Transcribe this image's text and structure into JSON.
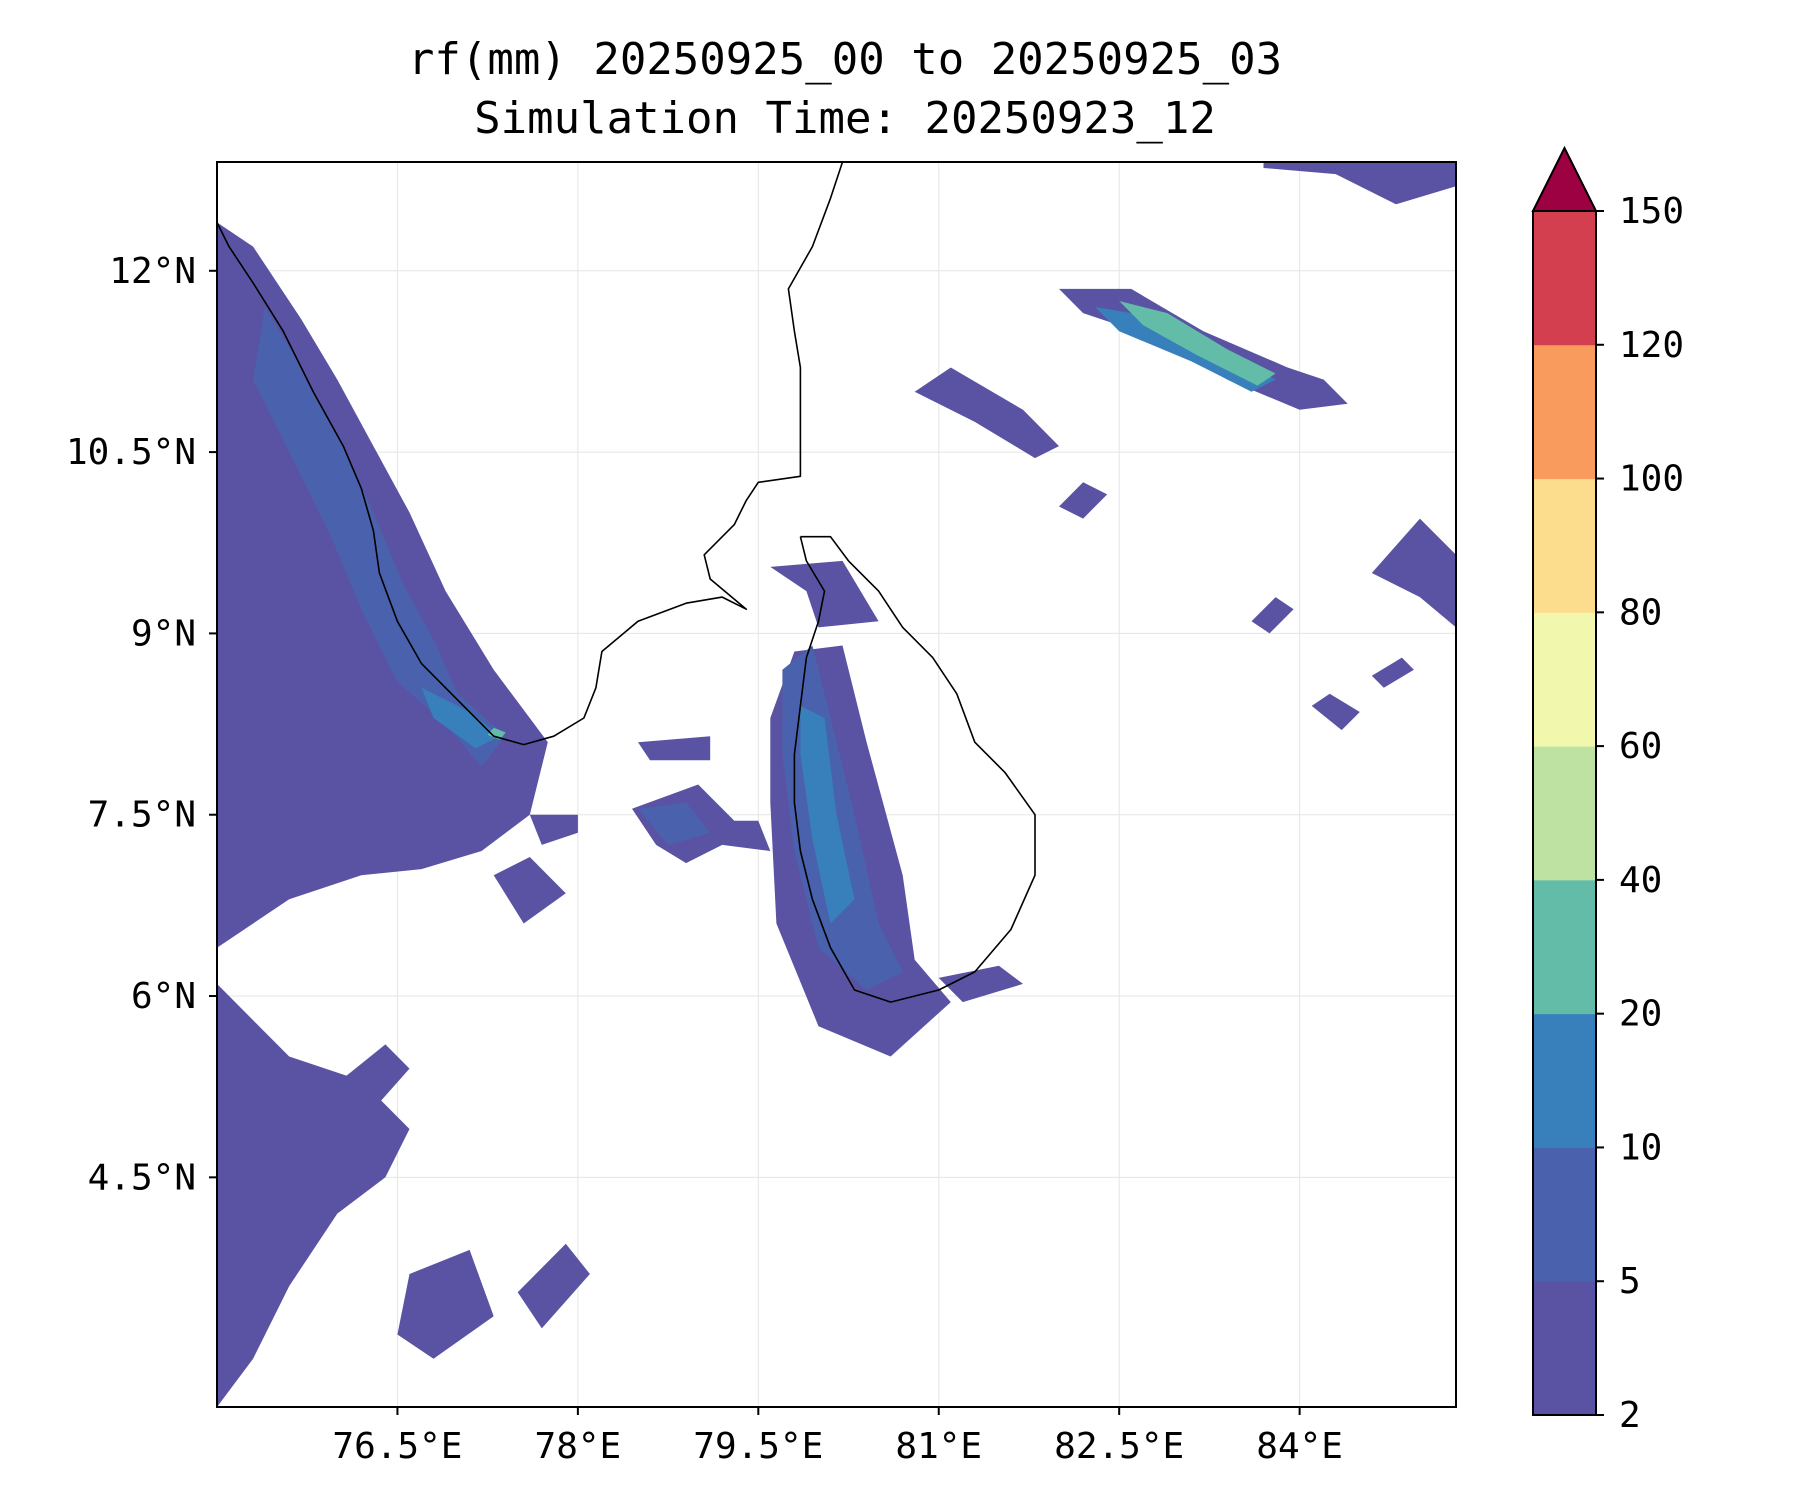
{
  "title": "rf(mm) 20250925_00 to 20250925_03",
  "subtitle": "Simulation Time: 20250923_12",
  "map": {
    "lon_range": [
      75.0,
      85.3
    ],
    "lat_range": [
      2.6,
      12.9
    ],
    "x_ticks": [
      {
        "value": 76.5,
        "label": "76.5°E"
      },
      {
        "value": 78.0,
        "label": "78°E"
      },
      {
        "value": 79.5,
        "label": "79.5°E"
      },
      {
        "value": 81.0,
        "label": "81°E"
      },
      {
        "value": 82.5,
        "label": "82.5°E"
      },
      {
        "value": 84.0,
        "label": "84°E"
      }
    ],
    "y_ticks": [
      {
        "value": 12.0,
        "label": "12°N"
      },
      {
        "value": 10.5,
        "label": "10.5°N"
      },
      {
        "value": 9.0,
        "label": "9°N"
      },
      {
        "value": 7.5,
        "label": "7.5°N"
      },
      {
        "value": 6.0,
        "label": "6°N"
      },
      {
        "value": 4.5,
        "label": "4.5°N"
      }
    ],
    "grid": true,
    "coastlines": {
      "india_west": [
        [
          75.0,
          12.4
        ],
        [
          75.1,
          12.2
        ],
        [
          75.3,
          11.9
        ],
        [
          75.55,
          11.5
        ],
        [
          75.8,
          11.0
        ],
        [
          76.05,
          10.55
        ],
        [
          76.2,
          10.2
        ],
        [
          76.3,
          9.85
        ],
        [
          76.35,
          9.5
        ],
        [
          76.5,
          9.1
        ],
        [
          76.7,
          8.75
        ],
        [
          77.0,
          8.45
        ],
        [
          77.3,
          8.15
        ],
        [
          77.55,
          8.08
        ]
      ],
      "india_east": [
        [
          77.55,
          8.08
        ],
        [
          77.8,
          8.15
        ],
        [
          78.05,
          8.3
        ],
        [
          78.15,
          8.55
        ],
        [
          78.2,
          8.85
        ],
        [
          78.5,
          9.1
        ],
        [
          78.9,
          9.25
        ],
        [
          79.2,
          9.3
        ],
        [
          79.4,
          9.2
        ],
        [
          79.1,
          9.45
        ],
        [
          79.05,
          9.65
        ],
        [
          79.3,
          9.9
        ],
        [
          79.4,
          10.1
        ],
        [
          79.5,
          10.25
        ],
        [
          79.85,
          10.3
        ],
        [
          79.85,
          10.85
        ],
        [
          79.85,
          11.2
        ],
        [
          79.8,
          11.5
        ],
        [
          79.75,
          11.85
        ],
        [
          79.95,
          12.2
        ],
        [
          80.1,
          12.6
        ],
        [
          80.2,
          12.9
        ]
      ],
      "sri_lanka": [
        [
          79.85,
          9.8
        ],
        [
          80.1,
          9.8
        ],
        [
          80.25,
          9.6
        ],
        [
          80.5,
          9.35
        ],
        [
          80.7,
          9.05
        ],
        [
          80.95,
          8.8
        ],
        [
          81.15,
          8.5
        ],
        [
          81.3,
          8.1
        ],
        [
          81.55,
          7.85
        ],
        [
          81.8,
          7.5
        ],
        [
          81.8,
          7.0
        ],
        [
          81.6,
          6.55
        ],
        [
          81.3,
          6.2
        ],
        [
          81.0,
          6.05
        ],
        [
          80.6,
          5.95
        ],
        [
          80.3,
          6.05
        ],
        [
          80.1,
          6.4
        ],
        [
          79.95,
          6.8
        ],
        [
          79.85,
          7.2
        ],
        [
          79.8,
          7.6
        ],
        [
          79.8,
          8.0
        ],
        [
          79.85,
          8.4
        ],
        [
          79.9,
          8.8
        ],
        [
          80.0,
          9.1
        ],
        [
          80.05,
          9.35
        ],
        [
          79.9,
          9.6
        ],
        [
          79.85,
          9.8
        ]
      ]
    },
    "rainfall_regions": [
      {
        "level": "2-5",
        "points": [
          [
            75.0,
            12.4
          ],
          [
            75.3,
            12.2
          ],
          [
            75.7,
            11.6
          ],
          [
            76.0,
            11.1
          ],
          [
            76.3,
            10.55
          ],
          [
            76.6,
            10.0
          ],
          [
            76.9,
            9.35
          ],
          [
            77.3,
            8.7
          ],
          [
            77.75,
            8.1
          ],
          [
            77.6,
            7.5
          ],
          [
            77.2,
            7.2
          ],
          [
            76.7,
            7.05
          ],
          [
            76.2,
            7.0
          ],
          [
            75.6,
            6.8
          ],
          [
            75.0,
            6.4
          ]
        ]
      },
      {
        "level": "2-5",
        "points": [
          [
            75.0,
            6.1
          ],
          [
            75.6,
            5.5
          ],
          [
            76.2,
            5.3
          ],
          [
            76.6,
            4.9
          ],
          [
            76.4,
            4.5
          ],
          [
            76.0,
            4.2
          ],
          [
            75.6,
            3.6
          ],
          [
            75.3,
            3.0
          ],
          [
            75.0,
            2.6
          ]
        ]
      },
      {
        "level": "2-5",
        "points": [
          [
            75.9,
            5.2
          ],
          [
            76.4,
            5.6
          ],
          [
            76.6,
            5.4
          ],
          [
            76.2,
            4.95
          ]
        ]
      },
      {
        "level": "2-5",
        "points": [
          [
            76.6,
            3.7
          ],
          [
            77.1,
            3.9
          ],
          [
            77.3,
            3.35
          ],
          [
            76.8,
            3.0
          ],
          [
            76.5,
            3.2
          ]
        ]
      },
      {
        "level": "2-5",
        "points": [
          [
            77.5,
            3.55
          ],
          [
            77.9,
            3.95
          ],
          [
            78.1,
            3.7
          ],
          [
            77.7,
            3.25
          ]
        ]
      },
      {
        "level": "2-5",
        "points": [
          [
            77.6,
            7.5
          ],
          [
            78.0,
            7.5
          ],
          [
            78.0,
            7.35
          ],
          [
            77.7,
            7.25
          ]
        ]
      },
      {
        "level": "2-5",
        "points": [
          [
            77.3,
            7.0
          ],
          [
            77.6,
            7.15
          ],
          [
            77.9,
            6.85
          ],
          [
            77.55,
            6.6
          ]
        ]
      },
      {
        "level": "2-5",
        "points": [
          [
            79.6,
            9.55
          ],
          [
            80.2,
            9.6
          ],
          [
            80.5,
            9.1
          ],
          [
            80.0,
            9.05
          ],
          [
            79.9,
            9.35
          ]
        ]
      },
      {
        "level": "2-5",
        "points": [
          [
            79.6,
            8.3
          ],
          [
            79.8,
            8.85
          ],
          [
            80.2,
            8.9
          ],
          [
            80.4,
            8.1
          ],
          [
            80.7,
            7.0
          ],
          [
            80.8,
            6.3
          ],
          [
            81.1,
            5.95
          ],
          [
            80.6,
            5.5
          ],
          [
            80.0,
            5.75
          ],
          [
            79.65,
            6.6
          ],
          [
            79.6,
            7.6
          ]
        ]
      },
      {
        "level": "2-5",
        "points": [
          [
            78.5,
            8.1
          ],
          [
            79.1,
            8.15
          ],
          [
            79.1,
            7.95
          ],
          [
            78.6,
            7.95
          ]
        ]
      },
      {
        "level": "2-5",
        "points": [
          [
            78.45,
            7.55
          ],
          [
            79.0,
            7.75
          ],
          [
            79.3,
            7.45
          ],
          [
            79.5,
            7.45
          ],
          [
            79.6,
            7.2
          ],
          [
            79.2,
            7.25
          ],
          [
            78.9,
            7.1
          ],
          [
            78.65,
            7.25
          ]
        ]
      },
      {
        "level": "2-5",
        "points": [
          [
            80.0,
            6.9
          ],
          [
            80.5,
            6.95
          ],
          [
            80.6,
            6.45
          ],
          [
            80.2,
            6.5
          ]
        ]
      },
      {
        "level": "2-5",
        "points": [
          [
            81.0,
            6.15
          ],
          [
            81.5,
            6.25
          ],
          [
            81.7,
            6.1
          ],
          [
            81.2,
            5.95
          ]
        ]
      },
      {
        "level": "2-5",
        "points": [
          [
            80.8,
            11.0
          ],
          [
            81.1,
            11.2
          ],
          [
            81.7,
            10.85
          ],
          [
            82.0,
            10.55
          ],
          [
            81.8,
            10.45
          ],
          [
            81.3,
            10.75
          ]
        ]
      },
      {
        "level": "2-5",
        "points": [
          [
            82.0,
            11.85
          ],
          [
            82.6,
            11.85
          ],
          [
            83.2,
            11.5
          ],
          [
            83.9,
            11.2
          ],
          [
            84.2,
            11.1
          ],
          [
            84.4,
            10.9
          ],
          [
            84.0,
            10.85
          ],
          [
            83.4,
            11.1
          ],
          [
            82.8,
            11.45
          ],
          [
            82.2,
            11.65
          ]
        ]
      },
      {
        "level": "2-5",
        "points": [
          [
            83.7,
            12.85
          ],
          [
            84.3,
            12.8
          ],
          [
            84.8,
            12.55
          ],
          [
            85.3,
            12.7
          ],
          [
            85.3,
            12.9
          ],
          [
            83.7,
            12.9
          ]
        ]
      },
      {
        "level": "2-5",
        "points": [
          [
            84.6,
            9.5
          ],
          [
            85.0,
            9.3
          ],
          [
            85.3,
            9.05
          ],
          [
            85.3,
            9.65
          ],
          [
            85.0,
            9.95
          ]
        ]
      },
      {
        "level": "2-5",
        "points": [
          [
            84.1,
            8.4
          ],
          [
            84.35,
            8.2
          ],
          [
            84.5,
            8.35
          ],
          [
            84.25,
            8.5
          ]
        ]
      },
      {
        "level": "2-5",
        "points": [
          [
            84.6,
            8.65
          ],
          [
            84.85,
            8.8
          ],
          [
            84.95,
            8.7
          ],
          [
            84.7,
            8.55
          ]
        ]
      },
      {
        "level": "2-5",
        "points": [
          [
            83.6,
            9.1
          ],
          [
            83.8,
            9.3
          ],
          [
            83.95,
            9.2
          ],
          [
            83.75,
            9.0
          ]
        ]
      },
      {
        "level": "2-5",
        "points": [
          [
            82.0,
            10.05
          ],
          [
            82.2,
            10.25
          ],
          [
            82.4,
            10.15
          ],
          [
            82.2,
            9.95
          ]
        ]
      },
      {
        "level": "5-10",
        "points": [
          [
            75.4,
            11.7
          ],
          [
            75.7,
            11.2
          ],
          [
            76.05,
            10.55
          ],
          [
            76.3,
            10.0
          ],
          [
            76.55,
            9.4
          ],
          [
            76.8,
            8.95
          ],
          [
            77.0,
            8.5
          ],
          [
            77.4,
            8.15
          ],
          [
            77.2,
            7.9
          ],
          [
            76.9,
            8.25
          ],
          [
            76.5,
            8.6
          ],
          [
            76.2,
            9.2
          ],
          [
            75.95,
            9.8
          ],
          [
            75.6,
            10.5
          ],
          [
            75.3,
            11.1
          ]
        ]
      },
      {
        "level": "5-10",
        "points": [
          [
            78.5,
            7.55
          ],
          [
            78.9,
            7.6
          ],
          [
            79.1,
            7.35
          ],
          [
            78.75,
            7.25
          ]
        ]
      },
      {
        "level": "5-10",
        "points": [
          [
            79.7,
            8.7
          ],
          [
            79.95,
            8.9
          ],
          [
            80.1,
            8.3
          ],
          [
            80.3,
            7.5
          ],
          [
            80.5,
            6.6
          ],
          [
            80.7,
            6.2
          ],
          [
            80.4,
            6.05
          ],
          [
            80.0,
            6.4
          ],
          [
            79.8,
            7.2
          ],
          [
            79.7,
            8.0
          ]
        ]
      },
      {
        "level": "10-20",
        "points": [
          [
            76.7,
            8.55
          ],
          [
            77.1,
            8.35
          ],
          [
            77.35,
            8.15
          ],
          [
            77.15,
            8.05
          ],
          [
            76.8,
            8.3
          ]
        ]
      },
      {
        "level": "10-20",
        "points": [
          [
            79.85,
            8.4
          ],
          [
            80.05,
            8.3
          ],
          [
            80.15,
            7.5
          ],
          [
            80.3,
            6.8
          ],
          [
            80.1,
            6.6
          ],
          [
            79.95,
            7.3
          ],
          [
            79.85,
            8.0
          ]
        ]
      },
      {
        "level": "10-20",
        "points": [
          [
            82.3,
            11.7
          ],
          [
            82.9,
            11.6
          ],
          [
            83.4,
            11.3
          ],
          [
            83.8,
            11.1
          ],
          [
            83.6,
            11.0
          ],
          [
            83.1,
            11.25
          ],
          [
            82.5,
            11.5
          ]
        ]
      },
      {
        "level": "20-40",
        "points": [
          [
            82.5,
            11.75
          ],
          [
            82.9,
            11.65
          ],
          [
            83.4,
            11.35
          ],
          [
            83.8,
            11.15
          ],
          [
            83.65,
            11.05
          ],
          [
            83.15,
            11.3
          ],
          [
            82.7,
            11.55
          ]
        ]
      },
      {
        "level": "20-40",
        "points": [
          [
            77.3,
            8.22
          ],
          [
            77.4,
            8.18
          ],
          [
            77.35,
            8.12
          ],
          [
            77.25,
            8.16
          ]
        ]
      }
    ]
  },
  "colorbar": {
    "levels": [
      2,
      5,
      10,
      20,
      40,
      60,
      80,
      100,
      120,
      150
    ],
    "colors": [
      "#5a53a3",
      "#4a62ad",
      "#3780bb",
      "#62bca8",
      "#bde2a2",
      "#f2f7ae",
      "#fcdd8d",
      "#f99b5d",
      "#d33f4e"
    ],
    "extend_color": "#9e0142",
    "extend": "max"
  },
  "coast_color": "#000000",
  "grid_color": "#e5e5e5"
}
